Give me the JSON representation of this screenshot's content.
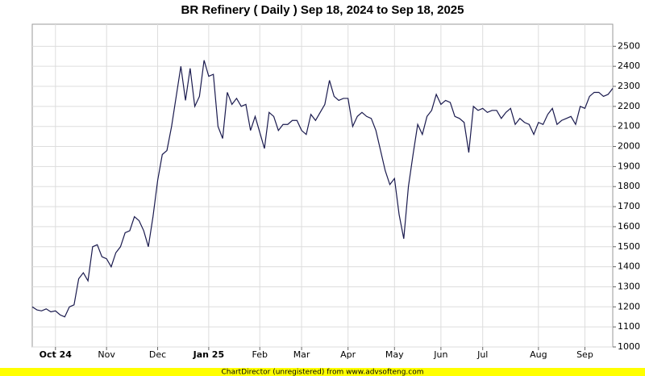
{
  "chart_data": {
    "type": "line",
    "title": "BR Refinery ( Daily ) Sep 18, 2024 to Sep 18, 2025",
    "footer": "ChartDirector (unregistered) from www.advsofteng.com",
    "categories": [
      null,
      null,
      null,
      null,
      null,
      "Oct 24",
      null,
      null,
      null,
      null,
      null,
      null,
      null,
      null,
      null,
      null,
      "Nov",
      null,
      null,
      null,
      null,
      null,
      null,
      null,
      null,
      null,
      null,
      "Dec",
      null,
      null,
      null,
      null,
      null,
      null,
      null,
      null,
      null,
      null,
      "Jan 25",
      null,
      null,
      null,
      null,
      null,
      null,
      null,
      null,
      null,
      null,
      "Feb",
      null,
      null,
      null,
      null,
      null,
      null,
      null,
      null,
      "Mar",
      null,
      null,
      null,
      null,
      null,
      null,
      null,
      null,
      null,
      "Apr",
      null,
      null,
      null,
      null,
      null,
      null,
      null,
      null,
      null,
      "May",
      null,
      null,
      null,
      null,
      null,
      null,
      null,
      null,
      null,
      "Jun",
      null,
      null,
      null,
      null,
      null,
      null,
      null,
      null,
      "Jul",
      null,
      null,
      null,
      null,
      null,
      null,
      null,
      null,
      null,
      null,
      null,
      "Aug",
      null,
      null,
      null,
      null,
      null,
      null,
      null,
      null,
      null,
      "Sep",
      null,
      null,
      null,
      null,
      null,
      null
    ],
    "series": [
      {
        "name": null,
        "color": "#1a1a4e",
        "values": [
          1200,
          1185,
          1180,
          1190,
          1175,
          1180,
          1160,
          1150,
          1200,
          1210,
          1340,
          1370,
          1330,
          1500,
          1510,
          1450,
          1440,
          1400,
          1470,
          1500,
          1570,
          1580,
          1650,
          1630,
          1580,
          1500,
          1650,
          1830,
          1960,
          1980,
          2100,
          2250,
          2400,
          2230,
          2390,
          2200,
          2250,
          2430,
          2350,
          2360,
          2100,
          2040,
          2270,
          2210,
          2240,
          2200,
          2210,
          2080,
          2150,
          2070,
          1990,
          2170,
          2150,
          2080,
          2110,
          2110,
          2130,
          2130,
          2080,
          2060,
          2160,
          2130,
          2170,
          2210,
          2330,
          2250,
          2230,
          2240,
          2240,
          2100,
          2150,
          2170,
          2150,
          2140,
          2080,
          1980,
          1880,
          1810,
          1840,
          1660,
          1540,
          1800,
          1960,
          2110,
          2060,
          2150,
          2180,
          2260,
          2210,
          2230,
          2220,
          2150,
          2140,
          2120,
          1970,
          2200,
          2180,
          2190,
          2170,
          2180,
          2180,
          2140,
          2170,
          2190,
          2110,
          2140,
          2120,
          2110,
          2060,
          2120,
          2110,
          2160,
          2190,
          2110,
          2130,
          2140,
          2150,
          2110,
          2200,
          2190,
          2250,
          2270,
          2270,
          2250,
          2260,
          2290
        ]
      }
    ],
    "ylim": [
      1000,
      2610
    ],
    "yticks": [
      1000,
      1100,
      1200,
      1300,
      1400,
      1500,
      1600,
      1700,
      1800,
      1900,
      2000,
      2100,
      2200,
      2300,
      2400,
      2500
    ],
    "grid": true
  }
}
